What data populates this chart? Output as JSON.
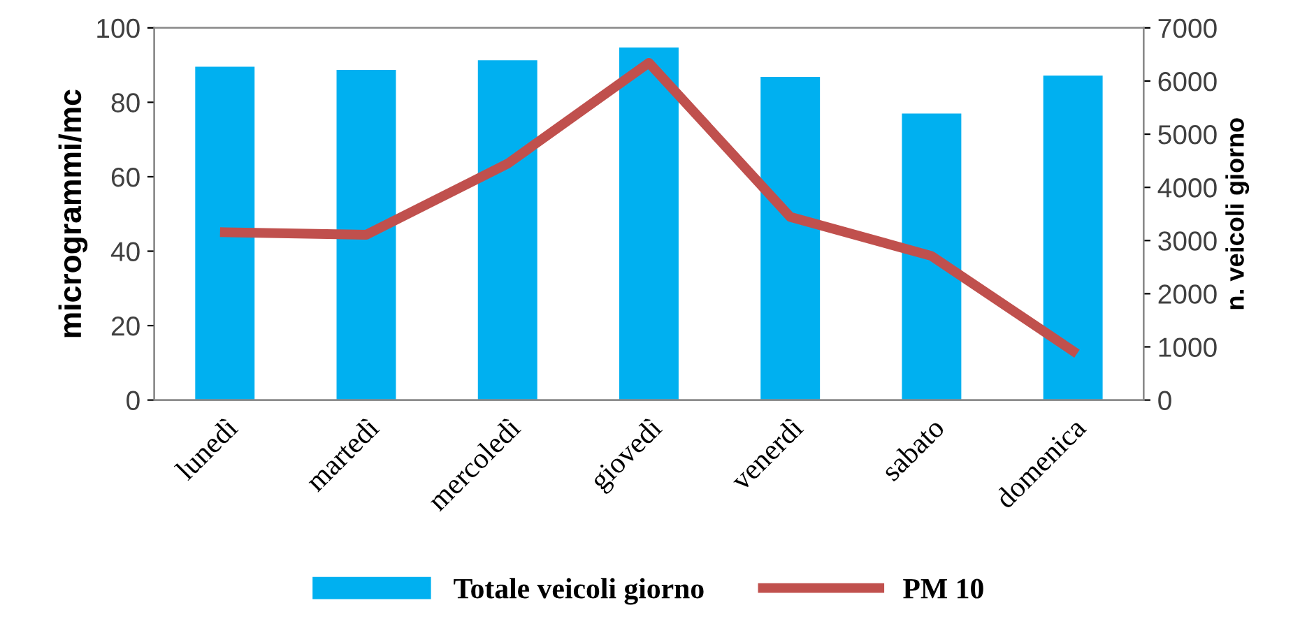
{
  "chart_data": {
    "type": "bar",
    "categories": [
      "lunedì",
      "martedì",
      "mercoledì",
      "giovedì",
      "venerdì",
      "sabato",
      "domenica"
    ],
    "series": [
      {
        "name": "Totale veicoli giorno",
        "axis": "y2",
        "color": "#00b0f0",
        "values": [
          6270,
          6210,
          6390,
          6630,
          6080,
          5390,
          6100
        ]
      },
      {
        "name": "PM 10",
        "type": "line",
        "axis": "y",
        "color": "#c0504d",
        "values": [
          45.1,
          44.4,
          63.5,
          90.6,
          49.2,
          38.7,
          13.2
        ]
      }
    ],
    "ylabel": "microgrammi/mc",
    "y2label": "n. veicoli giorno",
    "ylim": [
      0,
      100
    ],
    "yticks": [
      0,
      20,
      40,
      60,
      80,
      100
    ],
    "y2lim": [
      0,
      7000
    ],
    "y2ticks": [
      0,
      1000,
      2000,
      3000,
      4000,
      5000,
      6000,
      7000
    ],
    "grid": false,
    "legend": "bottom",
    "marker": "none",
    "line_style": "solid"
  }
}
